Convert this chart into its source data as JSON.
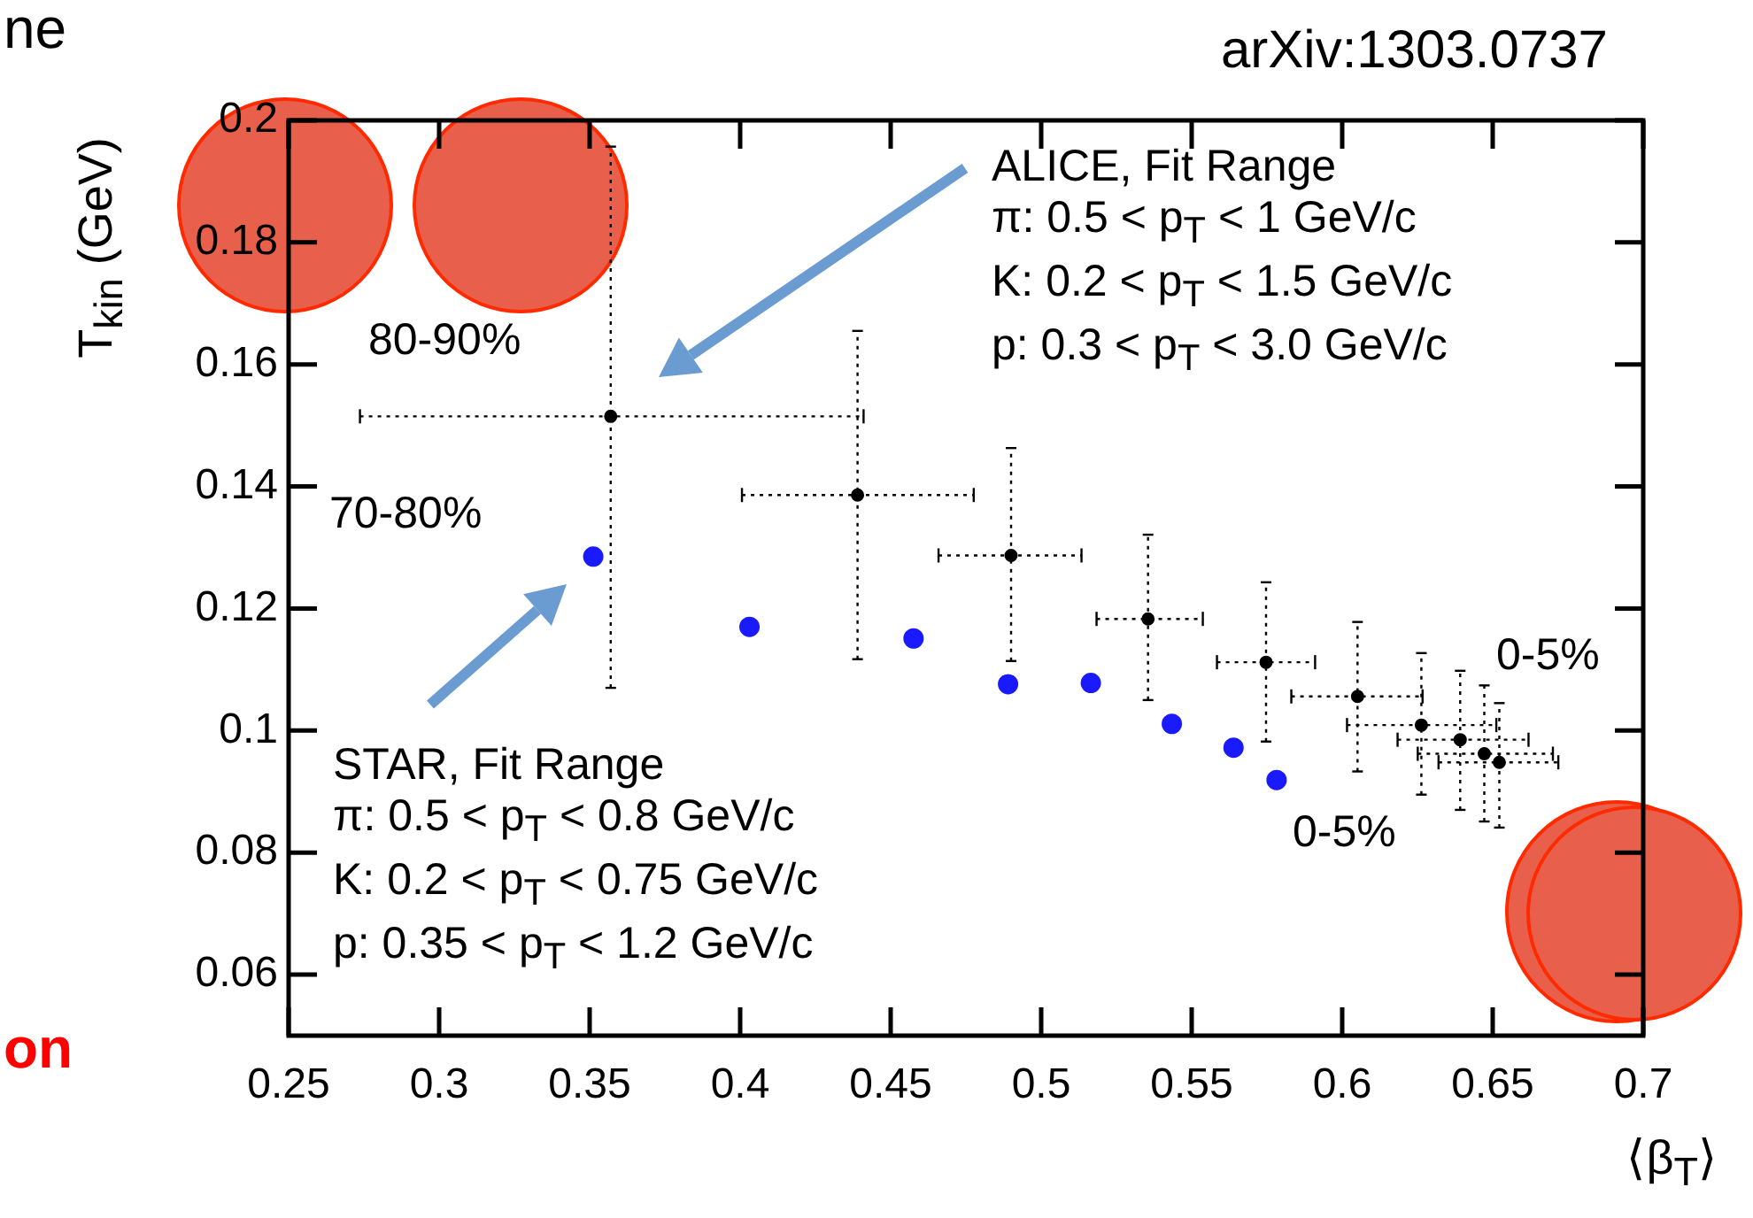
{
  "chart_data": {
    "type": "scatter",
    "xlabel": "⟨β$_{T}$⟩",
    "ylabel": "T$_{kin}$ (GeV)",
    "xlim": [
      0.25,
      0.7
    ],
    "xticks": [
      0.25,
      0.3,
      0.35,
      0.4,
      0.45,
      0.5,
      0.55,
      0.6,
      0.65,
      0.7
    ],
    "ylim": [
      0.05,
      0.2
    ],
    "yticks": [
      0.06,
      0.08,
      0.1,
      0.12,
      0.14,
      0.16,
      0.18,
      0.2
    ],
    "grid": false,
    "legend": false,
    "marker": "circle",
    "series": [
      {
        "color": "#000000",
        "x": [
          0.357,
          0.439,
          0.49,
          0.5355,
          0.5747,
          0.6051,
          0.6263,
          0.6392,
          0.6472,
          0.6522
        ],
        "values": [
          0.1515,
          0.1386,
          0.1287,
          0.1183,
          0.1112,
          0.1056,
          0.1009,
          0.0985,
          0.0962,
          0.0948
        ],
        "xerrors": [
          [
            0.2737,
            0.441
          ],
          [
            0.4006,
            0.4776
          ],
          [
            0.4659,
            0.5134
          ],
          [
            0.5184,
            0.5537
          ],
          [
            0.5584,
            0.591
          ],
          [
            0.5831,
            0.6267
          ],
          [
            0.6016,
            0.6512
          ],
          [
            0.6184,
            0.6619
          ],
          [
            0.6251,
            0.67
          ],
          [
            0.632,
            0.6718
          ]
        ],
        "errors": [
          [
            0.107,
            0.1957
          ],
          [
            0.1117,
            0.1655
          ],
          [
            0.1114,
            0.1463
          ],
          [
            0.105,
            0.1321
          ],
          [
            0.0982,
            0.1243
          ],
          [
            0.0933,
            0.1178
          ],
          [
            0.0895,
            0.1127
          ],
          [
            0.087,
            0.1098
          ],
          [
            0.0851,
            0.1074
          ],
          [
            0.0841,
            0.1045
          ]
        ]
      },
      {
        "color": "#1a1aff",
        "x": [
          0.3512,
          0.4031,
          0.4576,
          0.489,
          0.5165,
          0.5434,
          0.5639,
          0.5782
        ],
        "values": [
          0.1285,
          0.117,
          0.1151,
          0.1076,
          0.1078,
          0.1011,
          0.0972,
          0.0919
        ]
      }
    ],
    "annotations": [
      "arXiv:1303.0737",
      "ALICE, Fit Range\nπ: 0.5 < p$_{T}$ < 1 GeV/c\nK: 0.2 < p$_{T}$ < 1.5 GeV/c\np: 0.3 < p$_{T}$ < 3.0 GeV/c",
      "STAR, Fit Range\nπ: 0.5 < p$_{T}$ < 0.8 GeV/c\nK: 0.2 < p$_{T}$ < 0.75 GeV/c\np: 0.35 < p$_{T}$ < 1.2 GeV/c",
      "ne",
      "on",
      "80-90%",
      "70-80%",
      "0-5%",
      "0-5%"
    ]
  }
}
